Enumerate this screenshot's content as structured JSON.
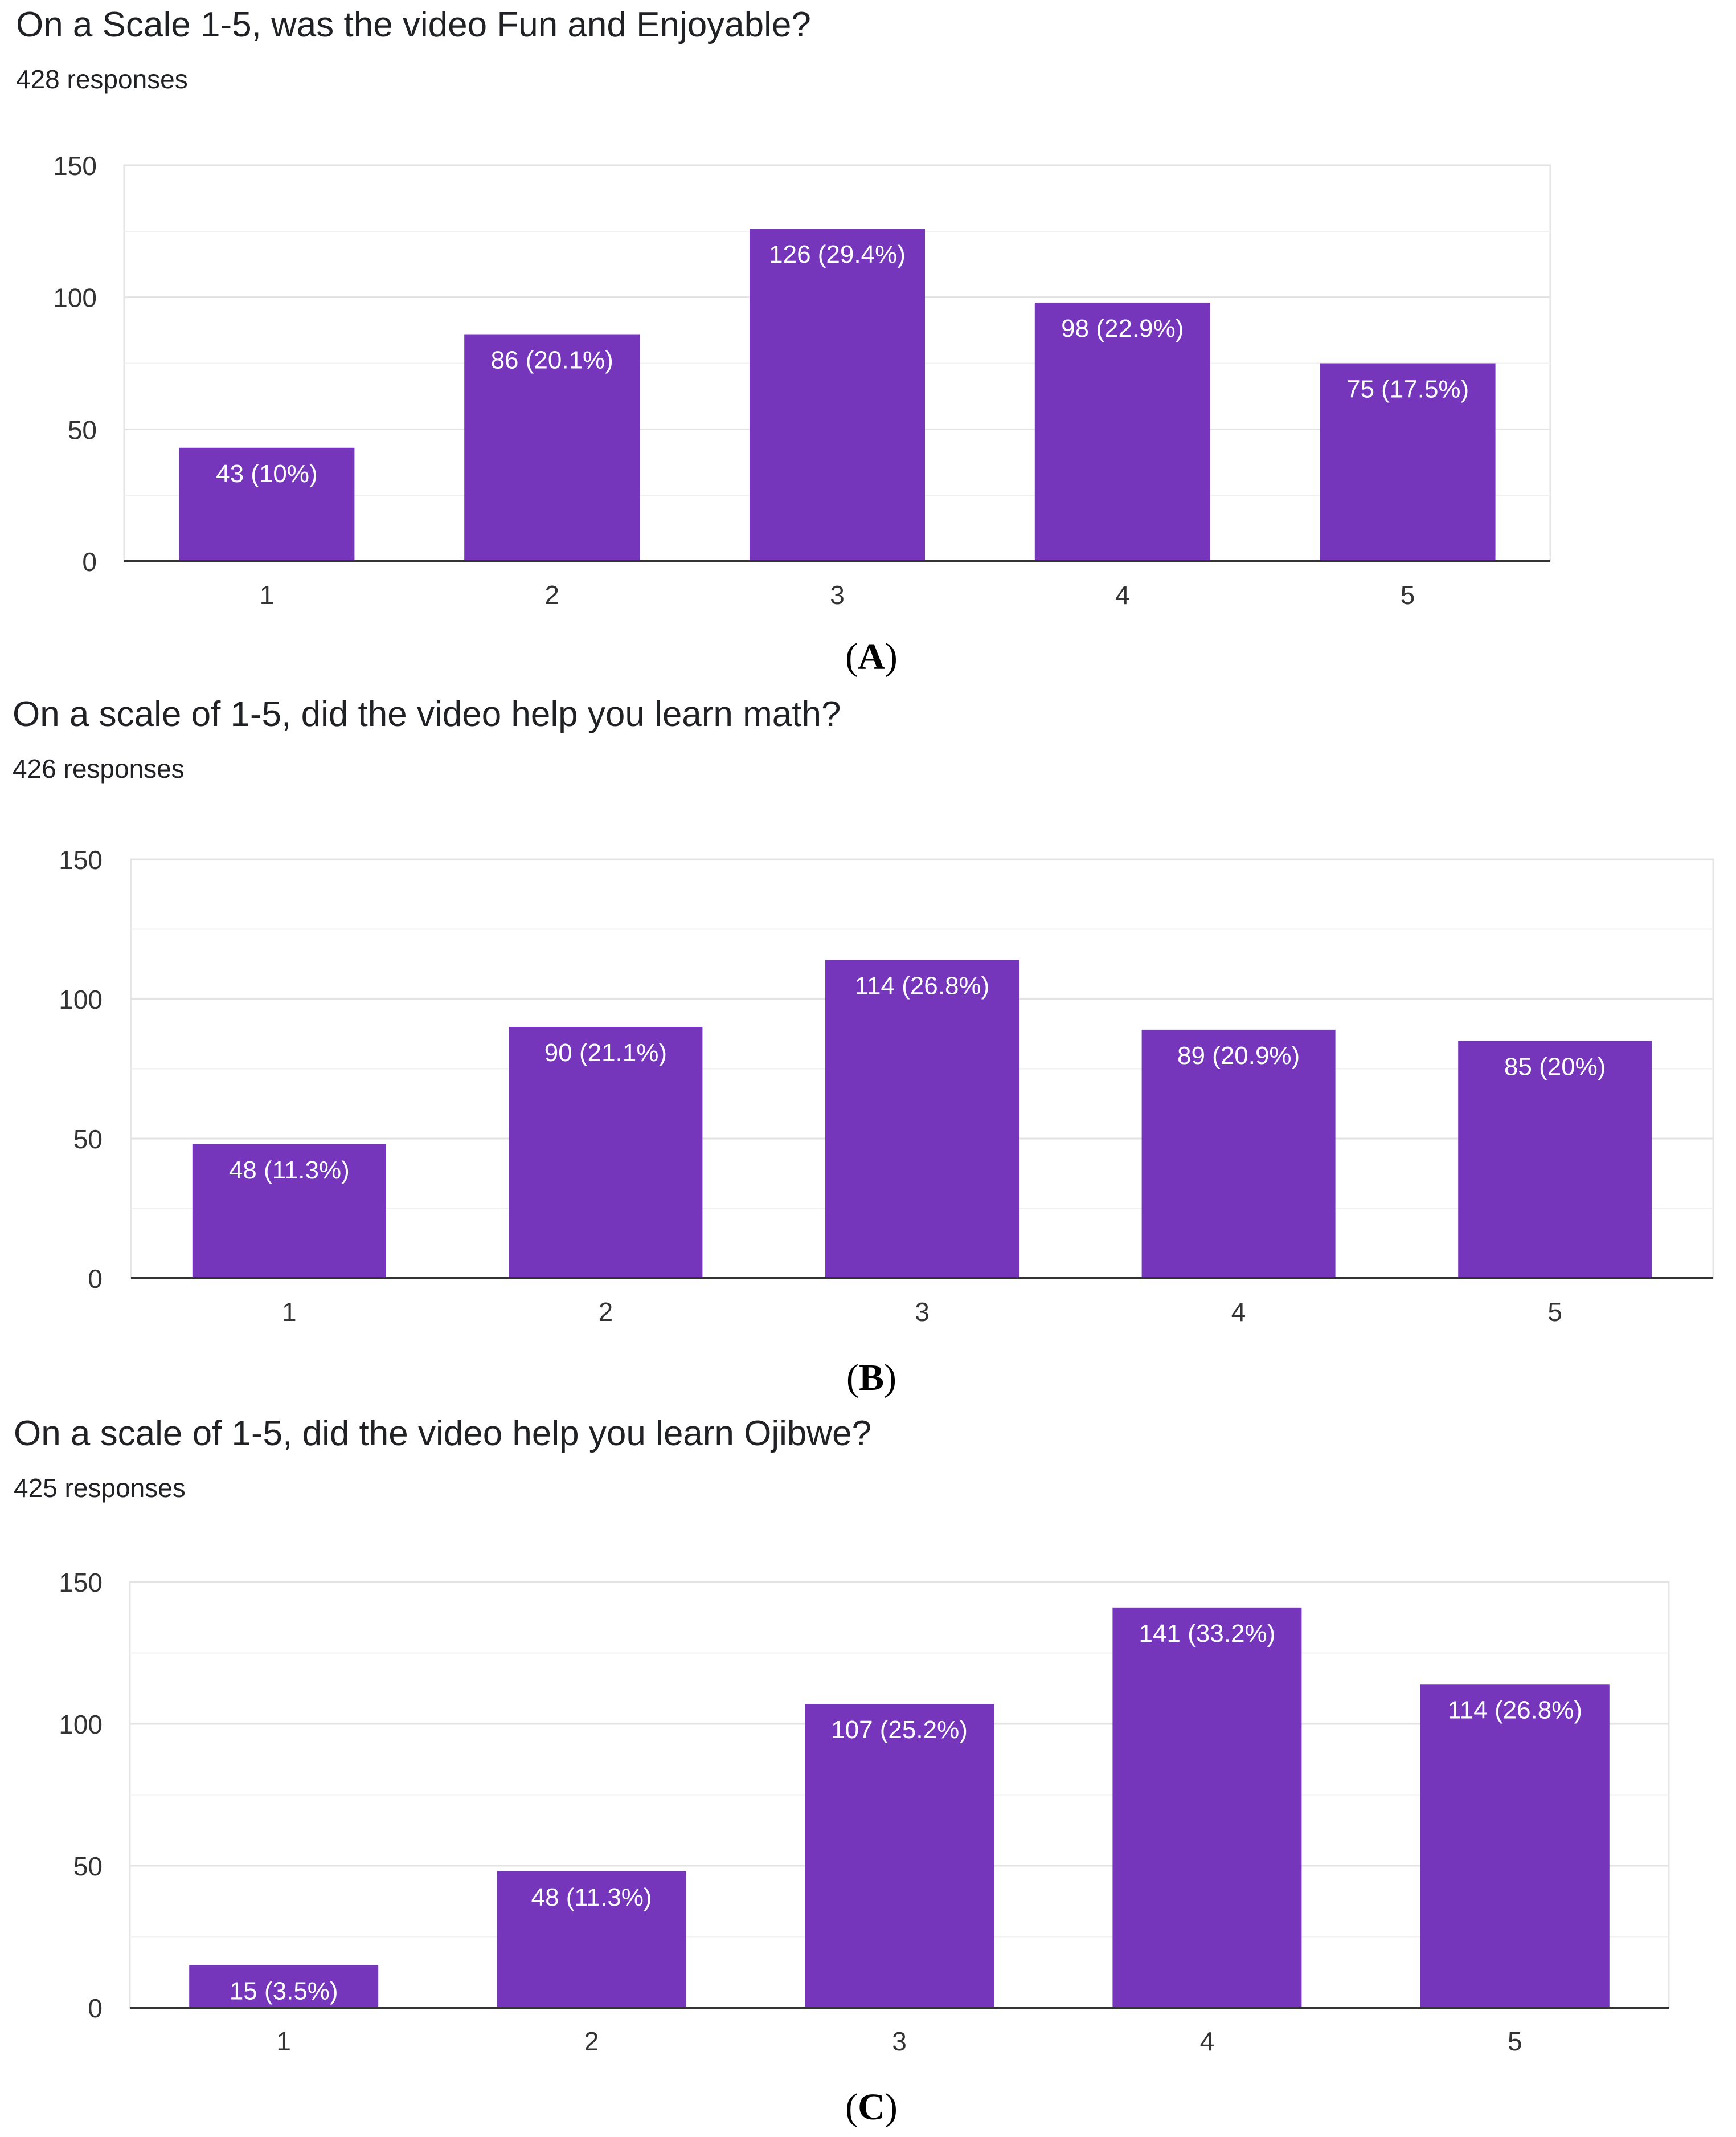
{
  "panels": [
    {
      "id": "A",
      "label": "A",
      "title": "On a Scale 1-5, was the video Fun and Enjoyable?",
      "responses": "428 responses",
      "bar_color": "#7536bc",
      "chart_data": {
        "type": "bar",
        "title": "On a Scale 1-5, was the video Fun and Enjoyable?",
        "categories": [
          "1",
          "2",
          "3",
          "4",
          "5"
        ],
        "values": [
          43,
          86,
          126,
          98,
          75
        ],
        "data_labels": [
          "43 (10%)",
          "86 (20.1%)",
          "126 (29.4%)",
          "98 (22.9%)",
          "75 (17.5%)"
        ],
        "yticks": [
          0,
          50,
          100,
          150
        ],
        "ylim": [
          0,
          150
        ],
        "xlabel": "",
        "ylabel": ""
      }
    },
    {
      "id": "B",
      "label": "B",
      "title": "On a scale of 1-5, did the video help you learn math?",
      "responses": "426 responses",
      "bar_color": "#7536bc",
      "chart_data": {
        "type": "bar",
        "title": "On a scale of 1-5, did the video help you learn math?",
        "categories": [
          "1",
          "2",
          "3",
          "4",
          "5"
        ],
        "values": [
          48,
          90,
          114,
          89,
          85
        ],
        "data_labels": [
          "48 (11.3%)",
          "90 (21.1%)",
          "114 (26.8%)",
          "89 (20.9%)",
          "85 (20%)"
        ],
        "yticks": [
          0,
          50,
          100,
          150
        ],
        "ylim": [
          0,
          150
        ],
        "xlabel": "",
        "ylabel": ""
      }
    },
    {
      "id": "C",
      "label": "C",
      "title": "On a scale of 1-5, did the video help you learn Ojibwe?",
      "responses": "425 responses",
      "bar_color": "#7536bc",
      "chart_data": {
        "type": "bar",
        "title": "On a scale of 1-5, did the video help you learn Ojibwe?",
        "categories": [
          "1",
          "2",
          "3",
          "4",
          "5"
        ],
        "values": [
          15,
          48,
          107,
          141,
          114
        ],
        "data_labels": [
          "15 (3.5%)",
          "48 (11.3%)",
          "107 (25.2%)",
          "141 (33.2%)",
          "114 (26.8%)"
        ],
        "yticks": [
          0,
          50,
          100,
          150
        ],
        "ylim": [
          0,
          150
        ],
        "xlabel": "",
        "ylabel": ""
      }
    }
  ]
}
